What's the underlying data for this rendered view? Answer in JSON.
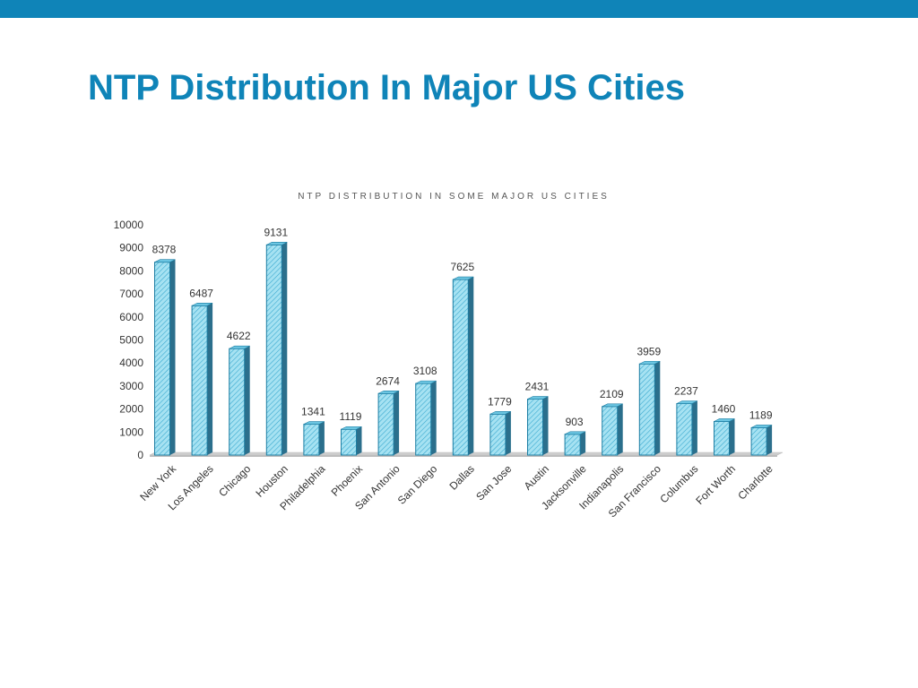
{
  "slide": {
    "title": "NTP Distribution In Major US Cities"
  },
  "colors": {
    "accent": "#0f84b8",
    "bar_face": "#a6e2f2",
    "bar_edge": "#1d7ea3",
    "bar_side": "#2b6f8c",
    "bar_top": "#6cc6e2",
    "floor": "#cfcfcf"
  },
  "chart_data": {
    "type": "bar",
    "title": "NTP DISTRIBUTION IN SOME MAJOR US CITIES",
    "xlabel": "",
    "ylabel": "",
    "ylim": [
      0,
      10000
    ],
    "yticks": [
      0,
      1000,
      2000,
      3000,
      4000,
      5000,
      6000,
      7000,
      8000,
      9000,
      10000
    ],
    "grid": false,
    "legend": "none",
    "categories": [
      "New York",
      "Los Angeles",
      "Chicago",
      "Houston",
      "Philadelphia",
      "Phoenix",
      "San Antonio",
      "San Diego",
      "Dallas",
      "San Jose",
      "Austin",
      "Jacksonville",
      "Indianapolis",
      "San Francisco",
      "Columbus",
      "Fort Worth",
      "Charlotte"
    ],
    "values": [
      8378,
      6487,
      4622,
      9131,
      1341,
      1119,
      2674,
      3108,
      7625,
      1779,
      2431,
      903,
      2109,
      3959,
      2237,
      1460,
      1189
    ]
  }
}
